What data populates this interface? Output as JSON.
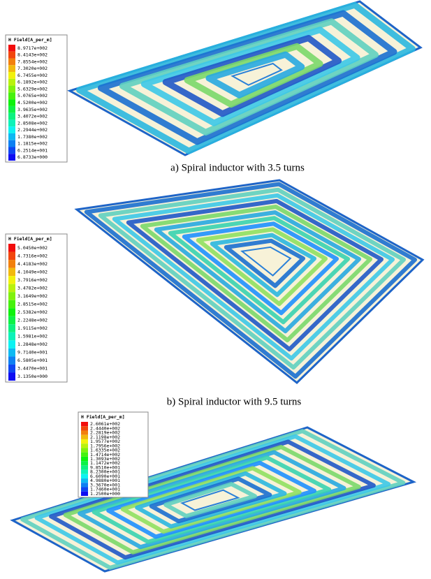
{
  "figures": [
    {
      "legend": {
        "title": "H Field[A_per_m]",
        "values": [
          "8.9717e+002",
          "8.4143e+002",
          "7.8554e+002",
          "7.3020e+002",
          "6.7455e+002",
          "6.1892e+002",
          "5.6329e+002",
          "5.0765e+002",
          "4.5200e+002",
          "3.9635e+002",
          "3.4072e+002",
          "2.8508e+002",
          "2.2944e+002",
          "1.7380e+002",
          "1.1815e+002",
          "6.2514e+001",
          "6.8733e+000"
        ]
      },
      "caption": "a) Spiral inductor with 3.5 turns"
    },
    {
      "legend": {
        "title": "H Field[A_per_m]",
        "values": [
          "5.0450e+002",
          "4.7316e+002",
          "4.4183e+002",
          "4.1049e+002",
          "3.7916e+002",
          "3.4782e+002",
          "3.1649e+002",
          "2.8515e+002",
          "2.5382e+002",
          "2.2248e+002",
          "1.9115e+002",
          "1.5981e+002",
          "1.2848e+002",
          "9.7140e+001",
          "6.5805e+001",
          "3.4470e+001",
          "3.1350e+000"
        ]
      },
      "caption": "b) Spiral inductor with 9.5 turns"
    },
    {
      "legend": {
        "title": "H Field[A_per_m]",
        "values": [
          "2.6061e+002",
          "2.4440e+002",
          "2.2819e+002",
          "2.1198e+002",
          "1.9577e+002",
          "1.7956e+002",
          "1.6335e+002",
          "1.4714e+002",
          "1.3093e+002",
          "1.1472e+002",
          "9.8510e+001",
          "8.2300e+001",
          "6.6090e+001",
          "4.9880e+001",
          "3.3670e+001",
          "1.7460e+001",
          "1.2500e+000"
        ]
      }
    }
  ]
}
